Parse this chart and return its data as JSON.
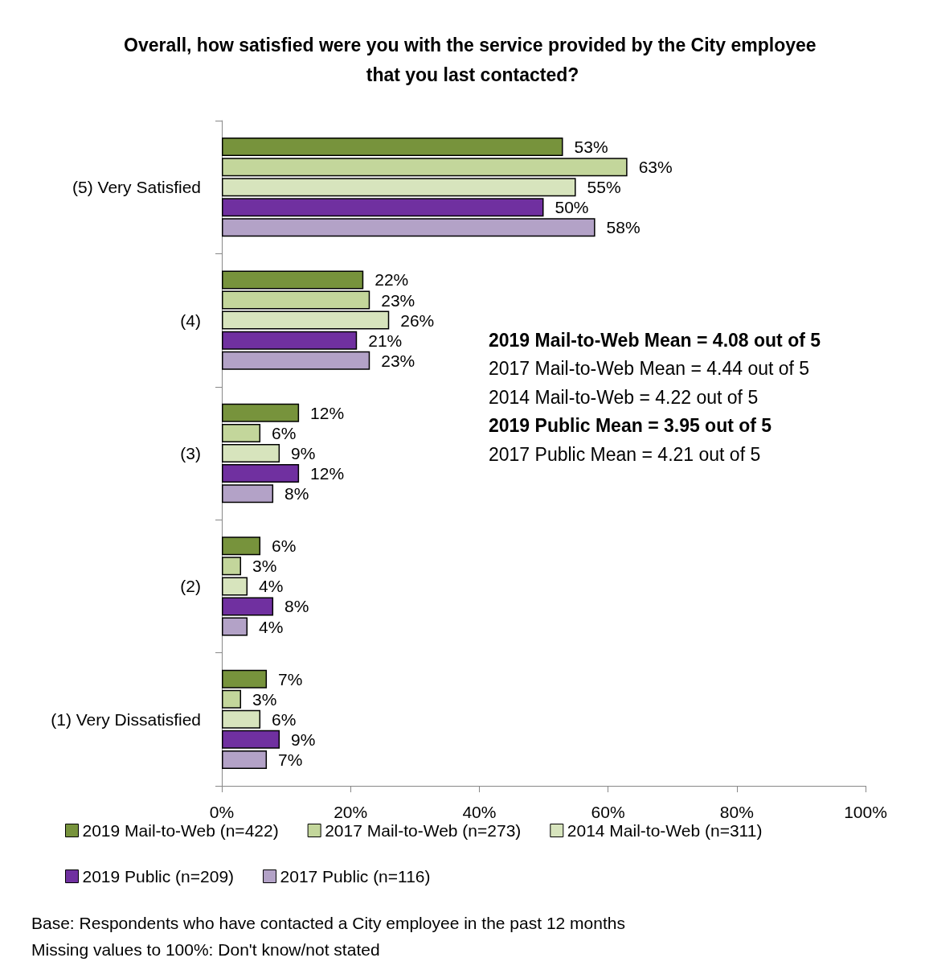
{
  "chart_data": {
    "type": "bar",
    "orientation": "horizontal",
    "title": "Overall, how satisfied were you with the service provided by the City employee that you last contacted?",
    "categories": [
      "(5) Very Satisfied",
      "(4)",
      "(3)",
      "(2)",
      "(1) Very Dissatisfied"
    ],
    "series": [
      {
        "name": "2019 Mail-to-Web (n=422)",
        "color": "#77933c",
        "values": [
          53,
          22,
          12,
          6,
          7
        ],
        "value_labels": [
          "53%",
          "22%",
          "12%",
          "6%",
          "7%"
        ]
      },
      {
        "name": "2017 Mail-to-Web (n=273)",
        "color": "#c3d69b",
        "values": [
          63,
          23,
          6,
          3,
          3
        ],
        "value_labels": [
          "63%",
          "23%",
          "6%",
          "3%",
          "3%"
        ]
      },
      {
        "name": "2014 Mail-to-Web (n=311)",
        "color": "#d7e4bd",
        "values": [
          55,
          26,
          9,
          4,
          6
        ],
        "value_labels": [
          "55%",
          "26%",
          "9%",
          "4%",
          "6%"
        ]
      },
      {
        "name": "2019 Public (n=209)",
        "color": "#7030a0",
        "values": [
          50,
          21,
          12,
          8,
          9
        ],
        "value_labels": [
          "50%",
          "21%",
          "12%",
          "8%",
          "9%"
        ]
      },
      {
        "name": "2017 Public (n=116)",
        "color": "#b3a2c7",
        "values": [
          58,
          23,
          8,
          4,
          7
        ],
        "value_labels": [
          "58%",
          "23%",
          "8%",
          "4%",
          "7%"
        ]
      }
    ],
    "xlim": [
      0,
      100
    ],
    "xticks": [
      {
        "value": 0,
        "label": "0%"
      },
      {
        "value": 20,
        "label": "20%"
      },
      {
        "value": 40,
        "label": "40%"
      },
      {
        "value": 60,
        "label": "60%"
      },
      {
        "value": 80,
        "label": "80%"
      },
      {
        "value": 100,
        "label": "100%"
      }
    ],
    "grid": false,
    "legend": "bottom",
    "annotations": [
      "2019 Mail-to-Web Mean = 4.08 out of 5",
      "2017 Mail-to-Web Mean = 4.44 out of 5",
      "2014 Mail-to-Web = 4.22 out of 5",
      "2019 Public Mean = 3.95 out of 5",
      "2017 Public Mean = 4.21 out of 5",
      "Base: Respondents who have contacted a City employee in the past 12 months",
      "Missing values to 100%: Don't know/not stated"
    ]
  }
}
